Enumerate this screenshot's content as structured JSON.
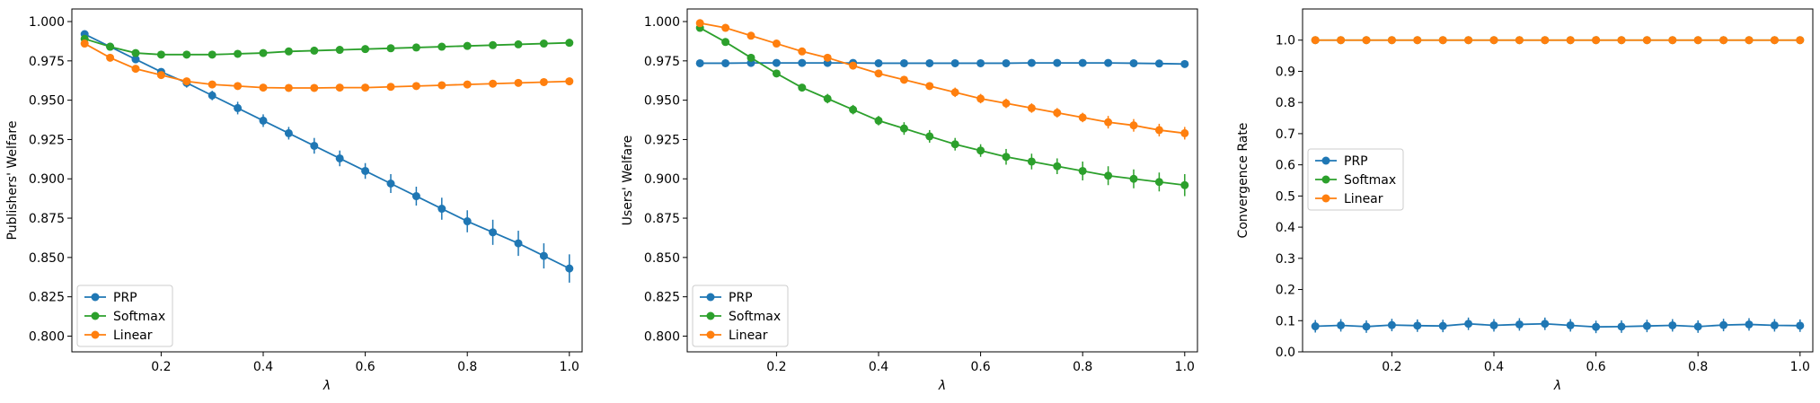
{
  "chart_data": [
    {
      "type": "line",
      "ylabel": "Publishers' Welfare",
      "xlabel": "λ",
      "xlim": [
        0.025,
        1.025
      ],
      "ylim": [
        0.79,
        1.008
      ],
      "xticks": [
        0.2,
        0.4,
        0.6,
        0.8,
        1.0
      ],
      "xtick_labels": [
        "0.2",
        "0.4",
        "0.6",
        "0.8",
        "1.0"
      ],
      "yticks": [
        0.8,
        0.825,
        0.85,
        0.875,
        0.9,
        0.925,
        0.95,
        0.975,
        1.0
      ],
      "ytick_labels": [
        "0.800",
        "0.825",
        "0.850",
        "0.875",
        "0.900",
        "0.925",
        "0.950",
        "0.975",
        "1.000"
      ],
      "legend_position": "lower-left",
      "x": [
        0.05,
        0.1,
        0.15,
        0.2,
        0.25,
        0.3,
        0.35,
        0.4,
        0.45,
        0.5,
        0.55,
        0.6,
        0.65,
        0.7,
        0.75,
        0.8,
        0.85,
        0.9,
        0.95,
        1.0
      ],
      "series": [
        {
          "name": "PRP",
          "color": "#1f77b4",
          "values": [
            0.992,
            0.984,
            0.976,
            0.968,
            0.961,
            0.953,
            0.945,
            0.937,
            0.929,
            0.921,
            0.913,
            0.905,
            0.897,
            0.889,
            0.881,
            0.873,
            0.866,
            0.859,
            0.851,
            0.843
          ],
          "errors": [
            0.002,
            0.002,
            0.002,
            0.002,
            0.003,
            0.003,
            0.004,
            0.004,
            0.004,
            0.005,
            0.005,
            0.005,
            0.006,
            0.006,
            0.007,
            0.007,
            0.008,
            0.008,
            0.008,
            0.009
          ]
        },
        {
          "name": "Softmax",
          "color": "#2ca02c",
          "values": [
            0.989,
            0.984,
            0.98,
            0.979,
            0.979,
            0.979,
            0.9795,
            0.98,
            0.981,
            0.9815,
            0.982,
            0.9825,
            0.983,
            0.9835,
            0.984,
            0.9845,
            0.985,
            0.9855,
            0.986,
            0.9865
          ],
          "errors": [
            0.001,
            0.001,
            0.001,
            0.001,
            0.001,
            0.001,
            0.001,
            0.001,
            0.001,
            0.001,
            0.001,
            0.001,
            0.001,
            0.001,
            0.001,
            0.001,
            0.001,
            0.001,
            0.001,
            0.001
          ]
        },
        {
          "name": "Linear",
          "color": "#ff7f0e",
          "values": [
            0.986,
            0.977,
            0.97,
            0.966,
            0.962,
            0.96,
            0.959,
            0.958,
            0.9578,
            0.9578,
            0.958,
            0.958,
            0.9585,
            0.959,
            0.9595,
            0.96,
            0.9605,
            0.961,
            0.9615,
            0.962
          ],
          "errors": [
            0.001,
            0.001,
            0.001,
            0.001,
            0.001,
            0.001,
            0.001,
            0.001,
            0.001,
            0.001,
            0.001,
            0.001,
            0.001,
            0.001,
            0.001,
            0.001,
            0.001,
            0.001,
            0.001,
            0.001
          ]
        }
      ]
    },
    {
      "type": "line",
      "ylabel": "Users' Welfare",
      "xlabel": "λ",
      "xlim": [
        0.025,
        1.025
      ],
      "ylim": [
        0.79,
        1.008
      ],
      "xticks": [
        0.2,
        0.4,
        0.6,
        0.8,
        1.0
      ],
      "xtick_labels": [
        "0.2",
        "0.4",
        "0.6",
        "0.8",
        "1.0"
      ],
      "yticks": [
        0.8,
        0.825,
        0.85,
        0.875,
        0.9,
        0.925,
        0.95,
        0.975,
        1.0
      ],
      "ytick_labels": [
        "0.800",
        "0.825",
        "0.850",
        "0.875",
        "0.900",
        "0.925",
        "0.950",
        "0.975",
        "1.000"
      ],
      "legend_position": "lower-left",
      "x": [
        0.05,
        0.1,
        0.15,
        0.2,
        0.25,
        0.3,
        0.35,
        0.4,
        0.45,
        0.5,
        0.55,
        0.6,
        0.65,
        0.7,
        0.75,
        0.8,
        0.85,
        0.9,
        0.95,
        1.0
      ],
      "series": [
        {
          "name": "PRP",
          "color": "#1f77b4",
          "values": [
            0.9735,
            0.9735,
            0.9737,
            0.9737,
            0.9737,
            0.9737,
            0.9737,
            0.9735,
            0.9735,
            0.9735,
            0.9735,
            0.9735,
            0.9735,
            0.9737,
            0.9737,
            0.9737,
            0.9737,
            0.9735,
            0.9733,
            0.973
          ],
          "errors": [
            0.001,
            0.001,
            0.001,
            0.001,
            0.001,
            0.001,
            0.001,
            0.001,
            0.001,
            0.001,
            0.001,
            0.001,
            0.001,
            0.001,
            0.001,
            0.001,
            0.001,
            0.001,
            0.001,
            0.001
          ]
        },
        {
          "name": "Softmax",
          "color": "#2ca02c",
          "values": [
            0.996,
            0.987,
            0.977,
            0.967,
            0.958,
            0.951,
            0.944,
            0.937,
            0.932,
            0.927,
            0.922,
            0.918,
            0.914,
            0.911,
            0.908,
            0.905,
            0.902,
            0.9,
            0.898,
            0.896
          ],
          "errors": [
            0.001,
            0.001,
            0.001,
            0.002,
            0.002,
            0.003,
            0.003,
            0.003,
            0.004,
            0.004,
            0.004,
            0.004,
            0.005,
            0.005,
            0.005,
            0.006,
            0.006,
            0.006,
            0.006,
            0.007
          ]
        },
        {
          "name": "Linear",
          "color": "#ff7f0e",
          "values": [
            0.999,
            0.996,
            0.991,
            0.986,
            0.981,
            0.977,
            0.972,
            0.967,
            0.963,
            0.959,
            0.955,
            0.951,
            0.948,
            0.945,
            0.942,
            0.939,
            0.936,
            0.934,
            0.931,
            0.929
          ],
          "errors": [
            0.001,
            0.001,
            0.001,
            0.001,
            0.001,
            0.002,
            0.002,
            0.002,
            0.002,
            0.002,
            0.003,
            0.003,
            0.003,
            0.003,
            0.003,
            0.003,
            0.004,
            0.004,
            0.004,
            0.004
          ]
        }
      ]
    },
    {
      "type": "line",
      "ylabel": "Convergence Rate",
      "xlabel": "λ",
      "xlim": [
        0.025,
        1.025
      ],
      "ylim": [
        0.0,
        1.1
      ],
      "xticks": [
        0.2,
        0.4,
        0.6,
        0.8,
        1.0
      ],
      "xtick_labels": [
        "0.2",
        "0.4",
        "0.6",
        "0.8",
        "1.0"
      ],
      "yticks": [
        0.0,
        0.1,
        0.2,
        0.3,
        0.4,
        0.5,
        0.6,
        0.7,
        0.8,
        0.9,
        1.0
      ],
      "ytick_labels": [
        "0.0",
        "0.1",
        "0.2",
        "0.3",
        "0.4",
        "0.5",
        "0.6",
        "0.7",
        "0.8",
        "0.9",
        "1.0"
      ],
      "legend_position": "center-left",
      "x": [
        0.05,
        0.1,
        0.15,
        0.2,
        0.25,
        0.3,
        0.35,
        0.4,
        0.45,
        0.5,
        0.55,
        0.6,
        0.65,
        0.7,
        0.75,
        0.8,
        0.85,
        0.9,
        0.95,
        1.0
      ],
      "series": [
        {
          "name": "PRP",
          "color": "#1f77b4",
          "values": [
            0.082,
            0.085,
            0.081,
            0.086,
            0.084,
            0.083,
            0.09,
            0.085,
            0.088,
            0.09,
            0.085,
            0.08,
            0.081,
            0.083,
            0.085,
            0.081,
            0.086,
            0.088,
            0.085,
            0.084
          ],
          "errors": [
            0.02,
            0.02,
            0.02,
            0.02,
            0.02,
            0.02,
            0.02,
            0.02,
            0.02,
            0.02,
            0.02,
            0.02,
            0.02,
            0.02,
            0.02,
            0.02,
            0.02,
            0.02,
            0.02,
            0.02
          ]
        },
        {
          "name": "Softmax",
          "color": "#2ca02c",
          "values": [
            1.0,
            1.0,
            1.0,
            1.0,
            1.0,
            1.0,
            1.0,
            1.0,
            1.0,
            1.0,
            1.0,
            1.0,
            1.0,
            1.0,
            1.0,
            1.0,
            1.0,
            1.0,
            1.0,
            1.0
          ],
          "errors": [
            0,
            0,
            0,
            0,
            0,
            0,
            0,
            0,
            0,
            0,
            0,
            0,
            0,
            0,
            0,
            0,
            0,
            0,
            0,
            0
          ]
        },
        {
          "name": "Linear",
          "color": "#ff7f0e",
          "values": [
            1.0,
            1.0,
            1.0,
            1.0,
            1.0,
            1.0,
            1.0,
            1.0,
            1.0,
            1.0,
            1.0,
            1.0,
            1.0,
            1.0,
            1.0,
            1.0,
            1.0,
            1.0,
            1.0,
            1.0
          ],
          "errors": [
            0,
            0,
            0,
            0,
            0,
            0,
            0,
            0,
            0,
            0,
            0,
            0,
            0,
            0,
            0,
            0,
            0,
            0,
            0,
            0
          ]
        }
      ]
    }
  ]
}
